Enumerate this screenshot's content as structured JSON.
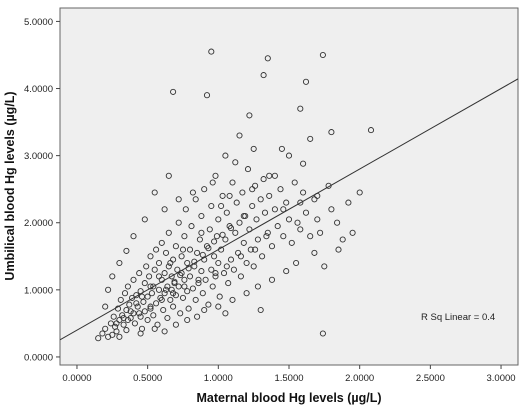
{
  "chart_data": {
    "type": "scatter",
    "xlabel": "Maternal blood Hg levels (µg/L)",
    "ylabel": "Umbilical blood Hg levels (µg/L)",
    "xlim": [
      -0.12,
      3.12
    ],
    "ylim": [
      -0.12,
      5.2
    ],
    "x_ticks": [
      0.0,
      0.5,
      1.0,
      1.5,
      2.0,
      2.5,
      3.0
    ],
    "x_tick_labels": [
      "0.0000",
      "0.5000",
      "1.0000",
      "1.5000",
      "2.0000",
      "2.5000",
      "3.0000"
    ],
    "y_ticks": [
      0.0,
      1.0,
      2.0,
      3.0,
      4.0,
      5.0
    ],
    "y_tick_labels": [
      "0.0000",
      "1.0000",
      "2.0000",
      "3.0000",
      "4.0000",
      "5.0000"
    ],
    "grid": false,
    "legend": "none",
    "fit_line": {
      "intercept": 0.4,
      "slope": 1.2
    },
    "annotation": "R Sq Linear = 0.4",
    "colors": {
      "plot_background": "#efefef",
      "marker_edge": "#333333",
      "fit_line": "#333333"
    },
    "points": [
      [
        0.15,
        0.28
      ],
      [
        0.18,
        0.35
      ],
      [
        0.2,
        0.42
      ],
      [
        0.22,
        0.3
      ],
      [
        0.24,
        0.5
      ],
      [
        0.25,
        0.33
      ],
      [
        0.26,
        0.6
      ],
      [
        0.27,
        0.45
      ],
      [
        0.28,
        0.38
      ],
      [
        0.29,
        0.72
      ],
      [
        0.3,
        0.55
      ],
      [
        0.3,
        0.3
      ],
      [
        0.31,
        0.85
      ],
      [
        0.32,
        0.62
      ],
      [
        0.33,
        0.48
      ],
      [
        0.34,
        0.95
      ],
      [
        0.35,
        0.7
      ],
      [
        0.35,
        0.4
      ],
      [
        0.36,
        1.05
      ],
      [
        0.37,
        0.78
      ],
      [
        0.38,
        0.58
      ],
      [
        0.39,
        0.88
      ],
      [
        0.4,
        0.65
      ],
      [
        0.4,
        1.15
      ],
      [
        0.41,
        0.5
      ],
      [
        0.42,
        0.92
      ],
      [
        0.43,
        0.75
      ],
      [
        0.44,
        1.25
      ],
      [
        0.45,
        0.6
      ],
      [
        0.45,
        0.98
      ],
      [
        0.46,
        0.42
      ],
      [
        0.47,
        0.82
      ],
      [
        0.48,
        1.1
      ],
      [
        0.48,
        0.68
      ],
      [
        0.49,
        1.35
      ],
      [
        0.5,
        0.55
      ],
      [
        0.5,
        0.9
      ],
      [
        0.51,
        1.2
      ],
      [
        0.52,
        0.72
      ],
      [
        0.52,
        1.5
      ],
      [
        0.53,
        0.95
      ],
      [
        0.54,
        0.62
      ],
      [
        0.54,
        1.05
      ],
      [
        0.55,
        1.3
      ],
      [
        0.56,
        0.8
      ],
      [
        0.56,
        1.6
      ],
      [
        0.57,
        0.48
      ],
      [
        0.58,
        1.0
      ],
      [
        0.58,
        1.4
      ],
      [
        0.59,
        0.88
      ],
      [
        0.6,
        1.15
      ],
      [
        0.6,
        1.7
      ],
      [
        0.61,
        0.7
      ],
      [
        0.62,
        1.25
      ],
      [
        0.62,
        0.95
      ],
      [
        0.63,
        1.55
      ],
      [
        0.64,
        1.05
      ],
      [
        0.64,
        0.58
      ],
      [
        0.65,
        1.35
      ],
      [
        0.65,
        1.85
      ],
      [
        0.66,
        0.85
      ],
      [
        0.67,
        1.2
      ],
      [
        0.67,
        1.0
      ],
      [
        0.68,
        1.45
      ],
      [
        0.68,
        0.75
      ],
      [
        0.69,
        1.1
      ],
      [
        0.7,
        1.65
      ],
      [
        0.7,
        0.92
      ],
      [
        0.71,
        1.3
      ],
      [
        0.72,
        2.0
      ],
      [
        0.72,
        1.05
      ],
      [
        0.73,
        0.65
      ],
      [
        0.74,
        1.25
      ],
      [
        0.74,
        1.5
      ],
      [
        0.75,
        0.88
      ],
      [
        0.76,
        1.8
      ],
      [
        0.76,
        1.15
      ],
      [
        0.77,
        2.2
      ],
      [
        0.78,
        0.98
      ],
      [
        0.78,
        1.4
      ],
      [
        0.79,
        0.72
      ],
      [
        0.8,
        1.6
      ],
      [
        0.8,
        1.2
      ],
      [
        0.81,
        1.95
      ],
      [
        0.82,
        1.02
      ],
      [
        0.83,
        1.35
      ],
      [
        0.84,
        2.35
      ],
      [
        0.84,
        0.85
      ],
      [
        0.85,
        1.55
      ],
      [
        0.86,
        1.1
      ],
      [
        0.87,
        1.75
      ],
      [
        0.88,
        1.28
      ],
      [
        0.88,
        2.1
      ],
      [
        0.89,
        0.95
      ],
      [
        0.9,
        1.45
      ],
      [
        0.9,
        2.5
      ],
      [
        0.91,
        1.15
      ],
      [
        0.92,
        1.65
      ],
      [
        0.93,
        0.78
      ],
      [
        0.94,
        1.9
      ],
      [
        0.95,
        1.3
      ],
      [
        0.95,
        2.25
      ],
      [
        0.96,
        1.05
      ],
      [
        0.97,
        1.5
      ],
      [
        0.98,
        2.7
      ],
      [
        0.98,
        1.2
      ],
      [
        0.99,
        1.8
      ],
      [
        1.0,
        1.4
      ],
      [
        1.0,
        2.05
      ],
      [
        1.01,
        0.9
      ],
      [
        1.02,
        1.6
      ],
      [
        1.03,
        2.4
      ],
      [
        1.04,
        1.25
      ],
      [
        1.05,
        1.75
      ],
      [
        1.06,
        2.15
      ],
      [
        1.07,
        1.1
      ],
      [
        1.08,
        1.95
      ],
      [
        1.09,
        1.45
      ],
      [
        1.1,
        2.6
      ],
      [
        1.11,
        1.3
      ],
      [
        1.12,
        1.85
      ],
      [
        1.13,
        2.3
      ],
      [
        1.14,
        1.55
      ],
      [
        1.15,
        2.0
      ],
      [
        1.16,
        1.2
      ],
      [
        1.17,
        2.45
      ],
      [
        1.18,
        1.7
      ],
      [
        1.19,
        2.1
      ],
      [
        1.2,
        1.4
      ],
      [
        1.21,
        2.8
      ],
      [
        1.22,
        1.9
      ],
      [
        1.23,
        1.6
      ],
      [
        1.24,
        2.25
      ],
      [
        1.25,
        1.35
      ],
      [
        1.26,
        2.55
      ],
      [
        1.27,
        2.05
      ],
      [
        1.28,
        1.75
      ],
      [
        1.3,
        2.35
      ],
      [
        1.31,
        1.5
      ],
      [
        1.32,
        2.65
      ],
      [
        1.33,
        2.15
      ],
      [
        1.35,
        1.85
      ],
      [
        1.36,
        2.4
      ],
      [
        1.38,
        1.65
      ],
      [
        1.4,
        2.2
      ],
      [
        1.42,
        1.95
      ],
      [
        1.44,
        2.5
      ],
      [
        1.46,
        1.8
      ],
      [
        1.48,
        2.3
      ],
      [
        1.5,
        2.05
      ],
      [
        1.52,
        1.7
      ],
      [
        1.54,
        2.6
      ],
      [
        1.56,
        2.0
      ],
      [
        1.58,
        1.9
      ],
      [
        1.6,
        2.45
      ],
      [
        1.62,
        2.15
      ],
      [
        1.65,
        1.8
      ],
      [
        1.68,
        2.35
      ],
      [
        1.7,
        2.05
      ],
      [
        1.72,
        1.85
      ],
      [
        1.75,
        1.35
      ],
      [
        1.78,
        2.55
      ],
      [
        1.8,
        2.2
      ],
      [
        1.84,
        2.0
      ],
      [
        1.88,
        1.75
      ],
      [
        1.92,
        2.3
      ],
      [
        2.0,
        2.45
      ],
      [
        2.08,
        3.38
      ],
      [
        1.74,
        0.35
      ],
      [
        1.05,
        0.65
      ],
      [
        1.3,
        0.7
      ],
      [
        0.92,
        3.9
      ],
      [
        0.68,
        3.95
      ],
      [
        1.35,
        4.45
      ],
      [
        1.32,
        4.2
      ],
      [
        1.74,
        4.5
      ],
      [
        1.62,
        4.1
      ],
      [
        1.58,
        3.7
      ],
      [
        1.22,
        3.6
      ],
      [
        1.15,
        3.3
      ],
      [
        1.45,
        3.1
      ],
      [
        1.65,
        3.25
      ],
      [
        1.8,
        3.35
      ],
      [
        1.05,
        3.0
      ],
      [
        0.95,
        4.55
      ],
      [
        1.6,
        2.88
      ],
      [
        0.65,
        2.7
      ],
      [
        0.55,
        2.45
      ],
      [
        0.48,
        2.05
      ],
      [
        0.4,
        1.8
      ],
      [
        0.35,
        1.58
      ],
      [
        0.3,
        1.4
      ],
      [
        0.25,
        1.2
      ],
      [
        0.22,
        1.0
      ],
      [
        0.2,
        0.75
      ],
      [
        0.45,
        0.35
      ],
      [
        0.55,
        0.42
      ],
      [
        0.62,
        0.38
      ],
      [
        0.7,
        0.48
      ],
      [
        0.78,
        0.55
      ],
      [
        0.85,
        0.6
      ],
      [
        0.9,
        0.7
      ],
      [
        1.0,
        0.75
      ],
      [
        1.1,
        0.85
      ],
      [
        1.2,
        0.95
      ],
      [
        1.28,
        1.05
      ],
      [
        1.38,
        1.15
      ],
      [
        1.48,
        1.28
      ],
      [
        1.55,
        1.4
      ],
      [
        1.68,
        1.55
      ],
      [
        1.85,
        1.6
      ],
      [
        1.95,
        1.85
      ],
      [
        1.12,
        2.9
      ],
      [
        1.25,
        3.1
      ],
      [
        1.4,
        2.7
      ],
      [
        1.5,
        3.0
      ],
      [
        1.18,
        2.1
      ],
      [
        1.02,
        2.25
      ],
      [
        0.88,
        1.85
      ],
      [
        0.75,
        1.6
      ],
      [
        0.66,
        1.4
      ],
      [
        0.58,
        1.2
      ],
      [
        0.52,
        1.05
      ],
      [
        0.46,
        0.9
      ],
      [
        0.42,
        0.8
      ],
      [
        0.38,
        0.68
      ],
      [
        0.33,
        0.58
      ],
      [
        0.28,
        0.5
      ],
      [
        0.62,
        2.2
      ],
      [
        0.72,
        2.35
      ],
      [
        0.82,
        2.45
      ],
      [
        0.96,
        2.6
      ],
      [
        1.08,
        2.4
      ],
      [
        1.24,
        2.5
      ],
      [
        1.36,
        2.7
      ],
      [
        1.46,
        2.2
      ],
      [
        1.58,
        2.3
      ],
      [
        1.7,
        2.4
      ],
      [
        1.34,
        1.8
      ],
      [
        1.26,
        1.6
      ],
      [
        1.16,
        1.5
      ],
      [
        1.06,
        1.35
      ],
      [
        0.98,
        1.25
      ],
      [
        0.86,
        1.15
      ],
      [
        0.76,
        1.05
      ],
      [
        0.68,
        0.95
      ],
      [
        0.6,
        0.85
      ],
      [
        0.52,
        0.75
      ],
      [
        0.44,
        0.65
      ],
      [
        0.36,
        0.55
      ],
      [
        0.63,
        1.0
      ],
      [
        0.69,
        1.12
      ],
      [
        0.73,
        1.22
      ],
      [
        0.79,
        1.32
      ],
      [
        0.83,
        1.42
      ],
      [
        0.89,
        1.52
      ],
      [
        0.93,
        1.62
      ],
      [
        0.97,
        1.72
      ],
      [
        1.03,
        1.82
      ],
      [
        1.09,
        1.92
      ]
    ]
  }
}
